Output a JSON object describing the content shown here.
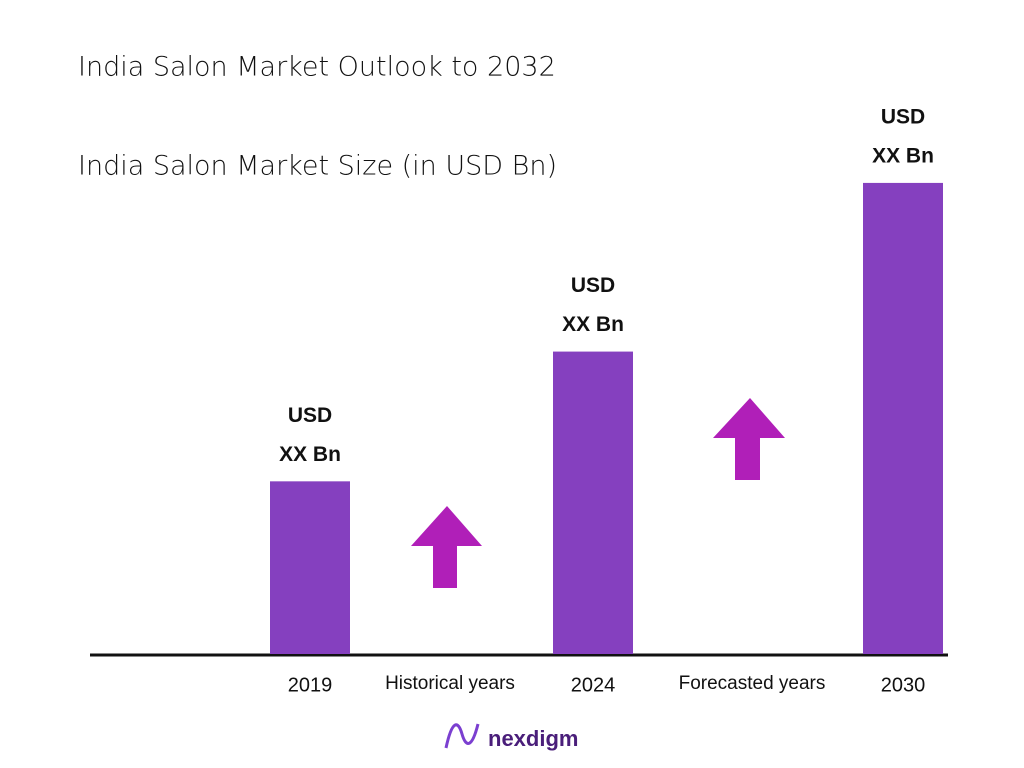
{
  "chart_data": {
    "type": "bar",
    "title": "India Salon Market Outlook to 2032",
    "subtitle": "India Salon Market Size (in USD Bn)",
    "categories": [
      "2019",
      "2024",
      "2030"
    ],
    "values": [
      173,
      303,
      472
    ],
    "value_labels": [
      [
        "USD",
        "XX Bn"
      ],
      [
        "USD",
        "XX Bn"
      ],
      [
        "USD",
        "XX Bn"
      ]
    ],
    "period_labels": [
      "Historical years",
      "Forecasted years"
    ],
    "color": "#8540bf",
    "ylim": [
      0,
      520
    ]
  },
  "logo": "nexdigm"
}
